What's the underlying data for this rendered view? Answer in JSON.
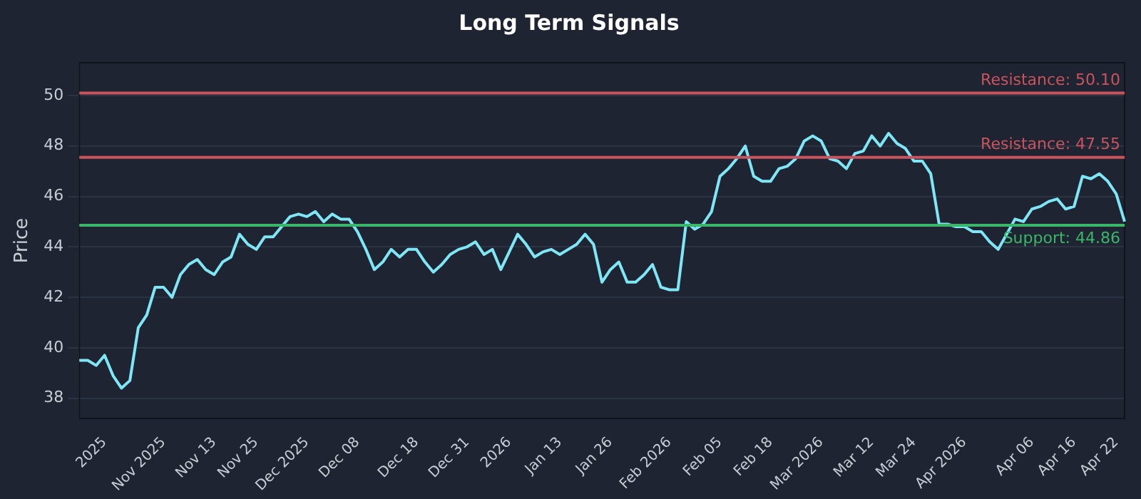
{
  "chart_data": {
    "type": "line",
    "title": "Long Term Signals",
    "ylabel": "Price",
    "categories": [
      null,
      null,
      null,
      "2025",
      null,
      null,
      null,
      null,
      null,
      null,
      "Nov 2025",
      null,
      null,
      null,
      null,
      null,
      "Nov 13",
      null,
      null,
      null,
      null,
      "Nov 25",
      null,
      null,
      null,
      null,
      null,
      "Dec 2025",
      null,
      null,
      null,
      null,
      null,
      "Dec 08",
      null,
      null,
      null,
      null,
      null,
      null,
      "Dec 18",
      null,
      null,
      null,
      null,
      null,
      "Dec 31",
      null,
      null,
      null,
      null,
      "2026",
      null,
      null,
      null,
      null,
      null,
      "Jan 13",
      null,
      null,
      null,
      null,
      null,
      "Jan 26",
      null,
      null,
      null,
      null,
      null,
      null,
      "Feb 2026",
      null,
      null,
      null,
      null,
      null,
      "Feb 05",
      null,
      null,
      null,
      null,
      null,
      "Feb 18",
      null,
      null,
      null,
      null,
      null,
      "Mar 2026",
      null,
      null,
      null,
      null,
      null,
      "Mar 12",
      null,
      null,
      null,
      null,
      "Mar 24",
      null,
      null,
      null,
      null,
      null,
      "Apr 2026",
      null,
      null,
      null,
      null,
      null,
      null,
      null,
      "Apr 06",
      null,
      null,
      null,
      null,
      "Apr 16",
      null,
      null,
      null,
      null,
      "Apr 22",
      null
    ],
    "series": [
      {
        "color": "#7fe6f5",
        "values": [
          39.5,
          39.5,
          39.3,
          39.7,
          38.9,
          38.4,
          38.7,
          40.8,
          41.3,
          42.4,
          42.4,
          42.0,
          42.9,
          43.3,
          43.5,
          43.1,
          42.9,
          43.4,
          43.6,
          44.5,
          44.1,
          43.9,
          44.4,
          44.4,
          44.8,
          45.2,
          45.3,
          45.2,
          45.4,
          45.0,
          45.3,
          45.1,
          45.1,
          44.6,
          43.9,
          43.1,
          43.4,
          43.9,
          43.6,
          43.9,
          43.9,
          43.4,
          43.0,
          43.3,
          43.7,
          43.9,
          44.0,
          44.2,
          43.7,
          43.9,
          43.1,
          43.8,
          44.5,
          44.1,
          43.6,
          43.8,
          43.9,
          43.7,
          43.9,
          44.1,
          44.5,
          44.1,
          42.6,
          43.1,
          43.4,
          42.6,
          42.6,
          42.9,
          43.3,
          42.4,
          42.3,
          42.3,
          45.0,
          44.7,
          44.9,
          45.4,
          46.8,
          47.1,
          47.5,
          48.0,
          46.8,
          46.6,
          46.6,
          47.1,
          47.2,
          47.5,
          48.2,
          48.4,
          48.2,
          47.5,
          47.4,
          47.1,
          47.7,
          47.8,
          48.4,
          48.0,
          48.5,
          48.1,
          47.9,
          47.4,
          47.4,
          46.9,
          44.9,
          44.9,
          44.8,
          44.8,
          44.6,
          44.6,
          44.2,
          43.9,
          44.5,
          45.1,
          45.0,
          45.5,
          45.6,
          45.8,
          45.9,
          45.5,
          45.6,
          46.8,
          46.7,
          46.9,
          46.6,
          46.1,
          45.0
        ]
      }
    ],
    "ylim": [
      37.2,
      51.3
    ],
    "yticks": [
      38,
      40,
      42,
      44,
      46,
      48,
      50
    ],
    "grid": "y",
    "legend": false,
    "marker": "none",
    "line_style": "solid",
    "ref_lines": [
      {
        "axis": "y",
        "value": 50.1,
        "label": "Resistance: 50.10",
        "color": "#c9545e"
      },
      {
        "axis": "y",
        "value": 47.55,
        "label": "Resistance: 47.55",
        "color": "#c9545e"
      },
      {
        "axis": "y",
        "value": 44.86,
        "label": "Support: 44.86",
        "color": "#3bb56a"
      }
    ]
  }
}
